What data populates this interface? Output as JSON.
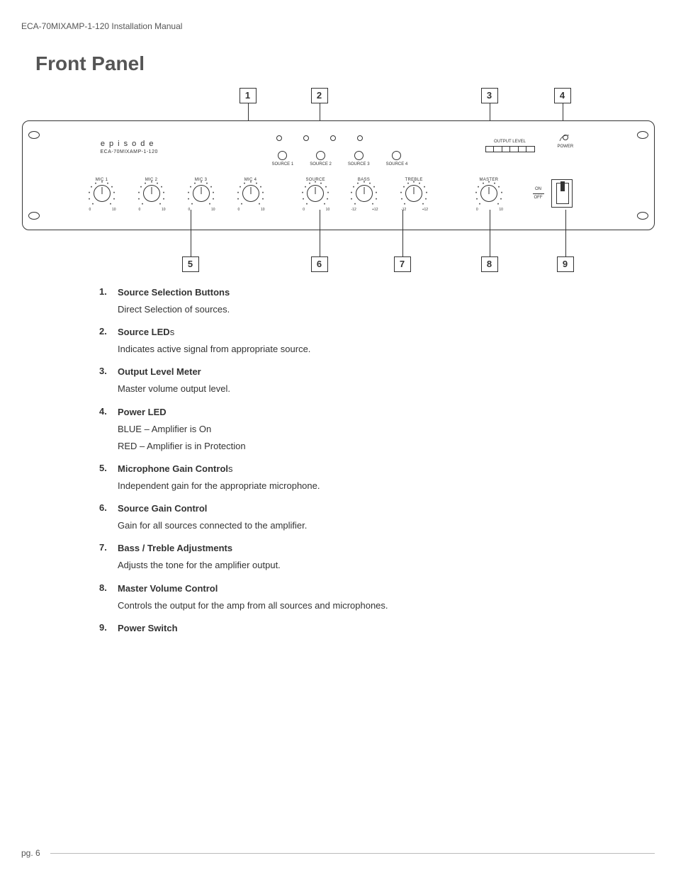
{
  "doc_header": "ECA-70MIXAMP-1-120 Installation Manual",
  "section_title": "Front Panel",
  "page_label": "pg. 6",
  "brand": {
    "name": "episode",
    "model": "ECA-70MIXAMP-1-120"
  },
  "source_buttons": [
    "SOURCE 1",
    "SOURCE 2",
    "SOURCE 3",
    "SOURCE 4"
  ],
  "meter": {
    "label": "OUTPUT LEVEL",
    "segments": 6
  },
  "power_led": {
    "label": "POWER"
  },
  "knobs": {
    "mic": [
      {
        "label": "MIC 1",
        "min": "0",
        "max": "10"
      },
      {
        "label": "MIC 2",
        "min": "0",
        "max": "10"
      },
      {
        "label": "MIC 3",
        "min": "0",
        "max": "10"
      },
      {
        "label": "MIC 4",
        "min": "0",
        "max": "10"
      }
    ],
    "tone": [
      {
        "label": "SOURCE",
        "min": "0",
        "max": "10"
      },
      {
        "label": "BASS",
        "min": "-12",
        "max": "+12"
      },
      {
        "label": "TREBLE",
        "min": "-12",
        "max": "+12"
      }
    ],
    "master": [
      {
        "label": "MASTER",
        "min": "0",
        "max": "10"
      }
    ]
  },
  "switch": {
    "on": "ON",
    "off": "OFF"
  },
  "callouts_top": {
    "c1": "1",
    "c2": "2",
    "c3": "3",
    "c4": "4"
  },
  "callouts_bottom": {
    "c5": "5",
    "c6": "6",
    "c7": "7",
    "c8": "8",
    "c9": "9"
  },
  "items": [
    {
      "num": "1.",
      "term": "Source Selection Buttons",
      "suffix": "",
      "desc": [
        "Direct Selection of sources."
      ]
    },
    {
      "num": "2.",
      "term": "Source LED",
      "suffix": "s",
      "desc": [
        "Indicates active signal from appropriate source."
      ]
    },
    {
      "num": "3.",
      "term": "Output Level Meter",
      "suffix": "",
      "desc": [
        "Master volume output level."
      ]
    },
    {
      "num": "4.",
      "term": "Power LED",
      "suffix": "",
      "desc": [
        "BLUE – Amplifier is On",
        "RED – Amplifier is in Protection"
      ]
    },
    {
      "num": "5.",
      "term": "Microphone Gain Control",
      "suffix": "s",
      "desc": [
        "Independent gain for the appropriate microphone."
      ]
    },
    {
      "num": "6.",
      "term": "Source Gain Control",
      "suffix": "",
      "desc": [
        "Gain for all sources connected to the amplifier."
      ]
    },
    {
      "num": "7.",
      "term": "Bass / Treble Adjustments",
      "suffix": "",
      "desc": [
        "Adjusts the tone for the amplifier output."
      ]
    },
    {
      "num": "8.",
      "term": "Master Volume Control",
      "suffix": "",
      "desc": [
        "Controls the output for the amp from all sources and microphones."
      ]
    },
    {
      "num": "9.",
      "term": "Power Switch",
      "suffix": "",
      "desc": []
    }
  ]
}
